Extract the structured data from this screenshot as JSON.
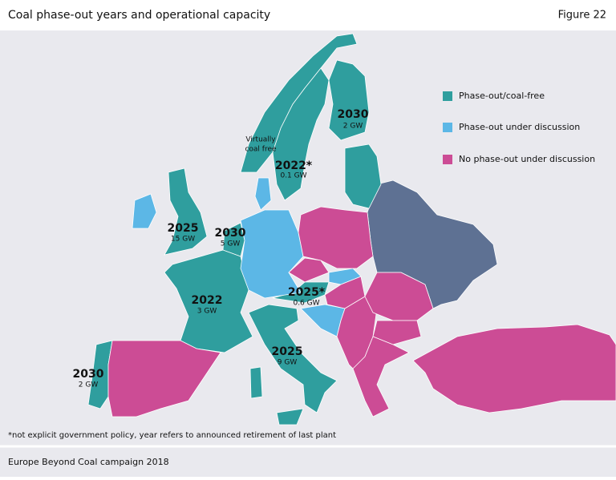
{
  "header": {
    "title": "Coal phase-out years and operational capacity",
    "figure": "Figure 22"
  },
  "legend": [
    {
      "label": "Phase-out/coal-free",
      "color": "#2f9e9e"
    },
    {
      "label": "Phase-out under discussion",
      "color": "#5cb7e6"
    },
    {
      "label": "No phase-out under discussion",
      "color": "#cc4c95"
    }
  ],
  "map_labels": [
    {
      "year": "2030",
      "capacity": "2 GW"
    },
    {
      "year": "2022*",
      "capacity": "0.1 GW"
    },
    {
      "year": "2025",
      "capacity": "15 GW"
    },
    {
      "year": "2030",
      "capacity": "5 GW"
    },
    {
      "year": "2022",
      "capacity": "3 GW"
    },
    {
      "year": "2025*",
      "capacity": "0.6 GW"
    },
    {
      "year": "2025",
      "capacity": "9 GW"
    },
    {
      "year": "2030",
      "capacity": "2 GW"
    }
  ],
  "annotation": [
    "Virtually",
    "coal free"
  ],
  "footnote": "*not explicit government policy, year refers to announced retirement of last plant",
  "source": "Europe Beyond Coal campaign 2018"
}
